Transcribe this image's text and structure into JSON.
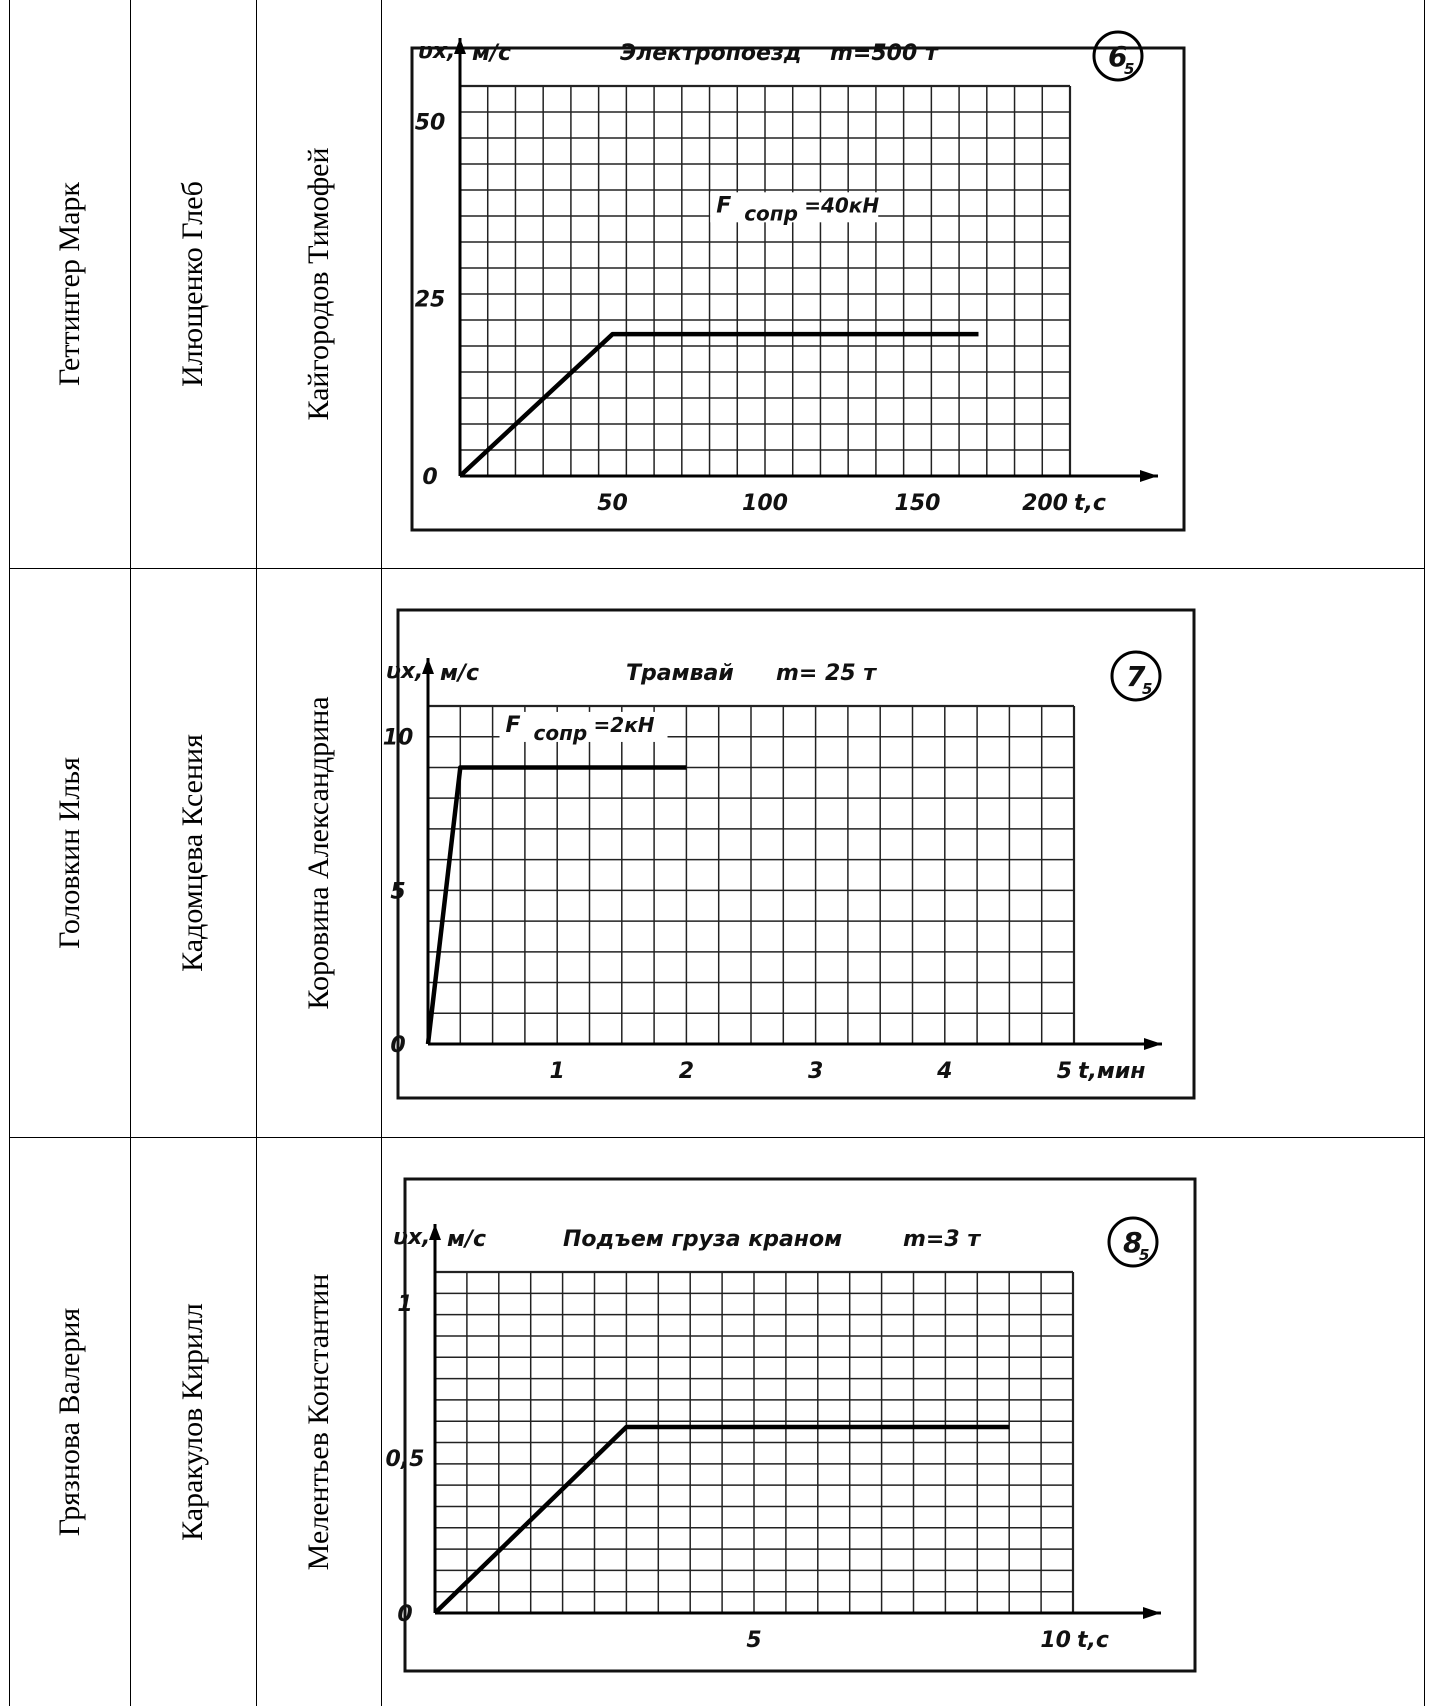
{
  "rows": [
    {
      "names": [
        "Геттингер Марк",
        "Илющенко Глеб",
        "Кайгородов Тимофей"
      ],
      "chart": {
        "badge_main": "6",
        "badge_sub": "5",
        "title": "Электропоезд",
        "mass": "m=500 т",
        "y_symbol": "υx,",
        "y_unit": "м/с",
        "x_unit": "t,с",
        "y_ticks": [
          "0",
          "25",
          "50"
        ],
        "x_ticks": [
          "50",
          "100",
          "150",
          "200"
        ],
        "annotation_F": "F",
        "annotation_sub": "сопр",
        "annotation_val": "=40кН"
      }
    },
    {
      "names": [
        "Головкин Илья",
        "Кадомцева Ксения",
        "Коровина Александрина"
      ],
      "chart": {
        "badge_main": "7",
        "badge_sub": "5",
        "title": "Трамвай",
        "mass": "m= 25 т",
        "y_symbol": "υx,",
        "y_unit": "м/с",
        "x_unit": "t,мин",
        "y_ticks": [
          "0",
          "5",
          "10"
        ],
        "x_ticks": [
          "1",
          "2",
          "3",
          "4",
          "5"
        ],
        "annotation_F": "F",
        "annotation_sub": "сопр",
        "annotation_val": "=2кН"
      }
    },
    {
      "names": [
        "Грязнова Валерия",
        "Каракулов Кирилл",
        "Мелентьев Константин"
      ],
      "chart": {
        "badge_main": "8",
        "badge_sub": "5",
        "title": "Подъем груза краном",
        "mass": "m=3 т",
        "y_symbol": "υx,",
        "y_unit": "м/с",
        "x_unit": "t,с",
        "y_ticks": [
          "0",
          "0,5",
          "1"
        ],
        "x_ticks": [
          "5",
          "10"
        ],
        "annotation_F": "",
        "annotation_sub": "",
        "annotation_val": ""
      }
    }
  ],
  "chart_data": [
    {
      "type": "line",
      "title": "Электропоезд",
      "xlabel": "t,с",
      "ylabel": "υx, м/с",
      "xlim": [
        0,
        200
      ],
      "ylim": [
        0,
        55
      ],
      "series": [
        {
          "x": [
            0,
            50,
            170
          ],
          "y": [
            0,
            20,
            20
          ]
        }
      ],
      "grid": true
    },
    {
      "type": "line",
      "title": "Трамвай",
      "xlabel": "t,мин",
      "ylabel": "υx, м/с",
      "xlim": [
        0,
        5
      ],
      "ylim": [
        0,
        11
      ],
      "series": [
        {
          "x": [
            0,
            0.25,
            2
          ],
          "y": [
            0,
            9,
            9
          ]
        }
      ],
      "grid": true
    },
    {
      "type": "line",
      "title": "Подъем груза краном",
      "xlabel": "t,с",
      "ylabel": "υx, м/с",
      "xlim": [
        0,
        10
      ],
      "ylim": [
        0,
        1.1
      ],
      "series": [
        {
          "x": [
            0,
            3,
            9
          ],
          "y": [
            0,
            0.6,
            0.6
          ]
        }
      ],
      "grid": true
    }
  ]
}
